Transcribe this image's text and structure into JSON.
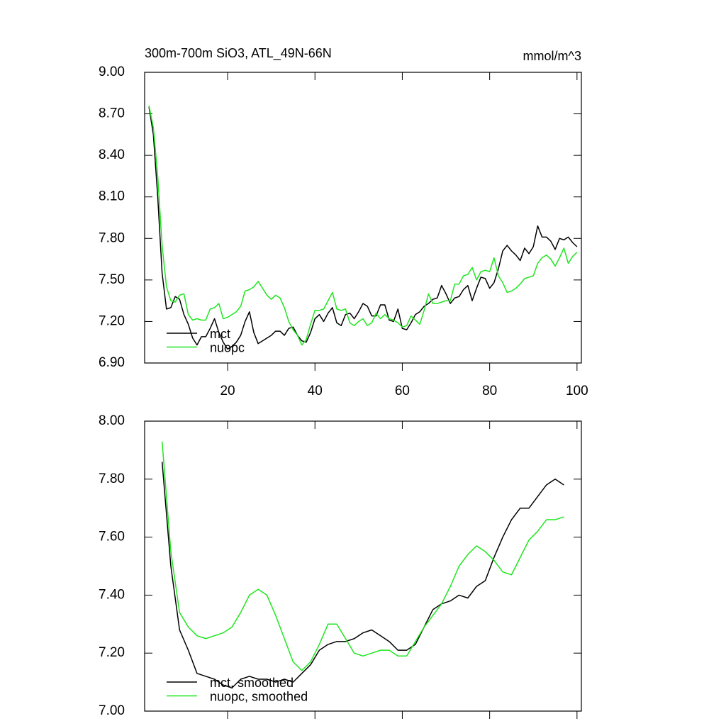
{
  "chart_data": [
    {
      "type": "line",
      "title": "300m-700m SiO3, ATL_49N-66N",
      "units": "mmol/m^3",
      "x": [
        2,
        3,
        4,
        5,
        6,
        7,
        8,
        9,
        10,
        11,
        12,
        13,
        14,
        15,
        16,
        17,
        18,
        19,
        20,
        21,
        22,
        23,
        24,
        25,
        26,
        27,
        28,
        29,
        30,
        31,
        32,
        33,
        34,
        35,
        36,
        37,
        38,
        39,
        40,
        41,
        42,
        43,
        44,
        45,
        46,
        47,
        48,
        49,
        50,
        51,
        52,
        53,
        54,
        55,
        56,
        57,
        58,
        59,
        60,
        61,
        62,
        63,
        64,
        65,
        66,
        67,
        68,
        69,
        70,
        71,
        72,
        73,
        74,
        75,
        76,
        77,
        78,
        79,
        80,
        81,
        82,
        83,
        84,
        85,
        86,
        87,
        88,
        89,
        90,
        91,
        92,
        93,
        94,
        95,
        96,
        97,
        98,
        99,
        100
      ],
      "series": [
        {
          "name": "mct",
          "color": "#000000",
          "values": [
            8.75,
            8.55,
            8.1,
            7.55,
            7.29,
            7.3,
            7.38,
            7.36,
            7.25,
            7.18,
            7.08,
            7.03,
            7.09,
            7.09,
            7.15,
            7.22,
            7.12,
            7.05,
            7.0,
            7.02,
            7.05,
            7.1,
            7.2,
            7.27,
            7.12,
            7.04,
            7.06,
            7.08,
            7.1,
            7.13,
            7.13,
            7.1,
            7.15,
            7.16,
            7.1,
            7.06,
            7.05,
            7.12,
            7.22,
            7.25,
            7.2,
            7.26,
            7.3,
            7.19,
            7.17,
            7.25,
            7.26,
            7.22,
            7.27,
            7.33,
            7.31,
            7.24,
            7.24,
            7.32,
            7.32,
            7.21,
            7.2,
            7.29,
            7.15,
            7.14,
            7.19,
            7.25,
            7.27,
            7.31,
            7.33,
            7.36,
            7.37,
            7.46,
            7.4,
            7.33,
            7.37,
            7.38,
            7.43,
            7.46,
            7.35,
            7.44,
            7.52,
            7.51,
            7.44,
            7.48,
            7.58,
            7.71,
            7.75,
            7.71,
            7.68,
            7.64,
            7.73,
            7.69,
            7.74,
            7.89,
            7.81,
            7.81,
            7.78,
            7.72,
            7.8,
            7.79,
            7.81,
            7.77,
            7.74
          ]
        },
        {
          "name": "nuopc",
          "color": "#1fe61f",
          "values": [
            8.76,
            8.6,
            8.25,
            7.75,
            7.45,
            7.35,
            7.34,
            7.39,
            7.4,
            7.25,
            7.21,
            7.22,
            7.21,
            7.21,
            7.29,
            7.3,
            7.33,
            7.22,
            7.23,
            7.25,
            7.27,
            7.31,
            7.42,
            7.43,
            7.45,
            7.49,
            7.44,
            7.39,
            7.36,
            7.39,
            7.37,
            7.3,
            7.2,
            7.14,
            7.1,
            7.03,
            7.07,
            7.18,
            7.28,
            7.28,
            7.29,
            7.35,
            7.41,
            7.29,
            7.28,
            7.29,
            7.19,
            7.17,
            7.2,
            7.22,
            7.17,
            7.19,
            7.26,
            7.22,
            7.25,
            7.22,
            7.21,
            7.19,
            7.16,
            7.17,
            7.24,
            7.21,
            7.18,
            7.28,
            7.4,
            7.33,
            7.33,
            7.34,
            7.35,
            7.35,
            7.47,
            7.47,
            7.53,
            7.54,
            7.59,
            7.5,
            7.56,
            7.57,
            7.56,
            7.66,
            7.53,
            7.48,
            7.41,
            7.42,
            7.44,
            7.47,
            7.51,
            7.52,
            7.53,
            7.62,
            7.66,
            7.68,
            7.65,
            7.6,
            7.66,
            7.73,
            7.62,
            7.67,
            7.7
          ]
        }
      ],
      "xlim": [
        1,
        101
      ],
      "xticks": [
        20,
        40,
        60,
        80,
        100
      ],
      "ylim": [
        6.9,
        9.0
      ],
      "yticks": [
        {
          "value": 6.9,
          "label": "6.90"
        },
        {
          "value": 7.2,
          "label": "7.20"
        },
        {
          "value": 7.5,
          "label": "7.50"
        },
        {
          "value": 7.8,
          "label": "7.80"
        },
        {
          "value": 8.1,
          "label": "8.10"
        },
        {
          "value": 8.4,
          "label": "8.40"
        },
        {
          "value": 8.7,
          "label": "8.70"
        },
        {
          "value": 9.0,
          "label": "9.00"
        }
      ]
    },
    {
      "type": "line",
      "x": [
        5,
        7,
        9,
        11,
        13,
        15,
        17,
        19,
        21,
        23,
        25,
        27,
        29,
        31,
        33,
        35,
        37,
        39,
        41,
        43,
        45,
        47,
        49,
        51,
        53,
        55,
        57,
        59,
        61,
        63,
        65,
        67,
        69,
        71,
        73,
        75,
        77,
        79,
        81,
        83,
        85,
        87,
        89,
        91,
        93,
        95,
        97
      ],
      "series": [
        {
          "name": "mct, smoothed",
          "color": "#000000",
          "values": [
            7.86,
            7.5,
            7.28,
            7.21,
            7.13,
            7.12,
            7.11,
            7.09,
            7.08,
            7.11,
            7.12,
            7.11,
            7.11,
            7.1,
            7.11,
            7.1,
            7.13,
            7.16,
            7.21,
            7.23,
            7.24,
            7.24,
            7.25,
            7.27,
            7.28,
            7.26,
            7.24,
            7.21,
            7.21,
            7.23,
            7.29,
            7.35,
            7.37,
            7.38,
            7.4,
            7.39,
            7.43,
            7.45,
            7.53,
            7.6,
            7.66,
            7.7,
            7.7,
            7.74,
            7.78,
            7.8,
            7.78
          ]
        },
        {
          "name": "nuopc, smoothed",
          "color": "#1fe61f",
          "values": [
            7.93,
            7.55,
            7.34,
            7.29,
            7.26,
            7.25,
            7.26,
            7.27,
            7.29,
            7.34,
            7.4,
            7.42,
            7.4,
            7.33,
            7.25,
            7.17,
            7.14,
            7.17,
            7.23,
            7.3,
            7.3,
            7.25,
            7.2,
            7.19,
            7.2,
            7.21,
            7.21,
            7.19,
            7.19,
            7.24,
            7.29,
            7.33,
            7.37,
            7.43,
            7.5,
            7.54,
            7.57,
            7.55,
            7.52,
            7.48,
            7.47,
            7.53,
            7.59,
            7.62,
            7.66,
            7.66,
            7.67
          ]
        }
      ],
      "xlim": [
        1,
        101
      ],
      "ylim": [
        7.0,
        8.0
      ],
      "yticks": [
        {
          "value": 7.0,
          "label": "7.00"
        },
        {
          "value": 7.2,
          "label": "7.20"
        },
        {
          "value": 7.4,
          "label": "7.40"
        },
        {
          "value": 7.6,
          "label": "7.60"
        },
        {
          "value": 7.8,
          "label": "7.80"
        },
        {
          "value": 8.0,
          "label": "8.00"
        }
      ]
    }
  ]
}
